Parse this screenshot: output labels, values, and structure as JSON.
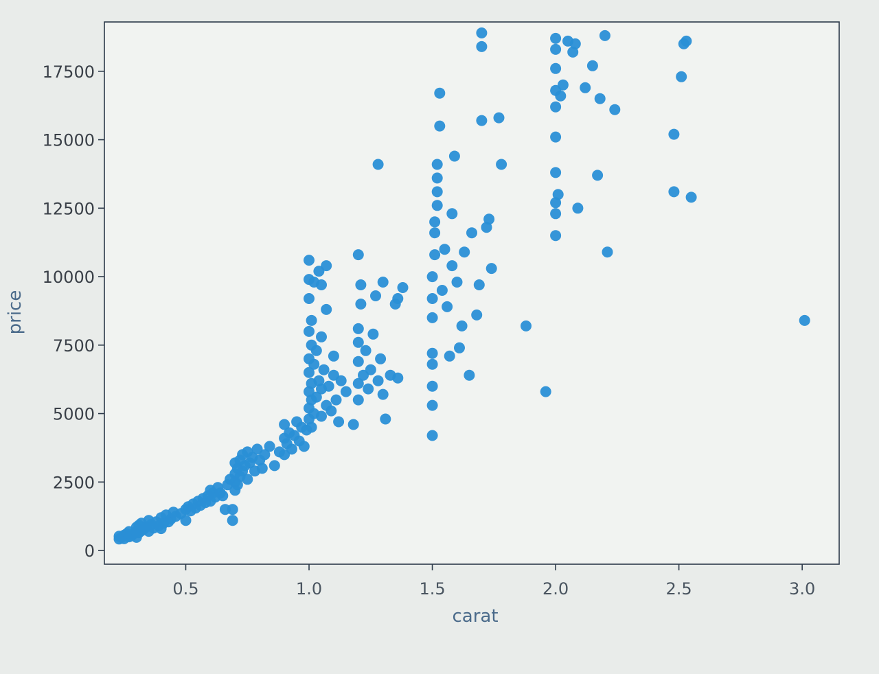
{
  "chart_data": {
    "type": "scatter",
    "title": "",
    "xlabel": "carat",
    "ylabel": "price",
    "xlim": [
      0.17,
      3.15
    ],
    "ylim": [
      -500,
      19300
    ],
    "x_ticks": [
      0.5,
      1.0,
      1.5,
      2.0,
      2.5,
      3.0
    ],
    "x_tick_labels": [
      "0.5",
      "1.0",
      "1.5",
      "2.0",
      "2.5",
      "3.0"
    ],
    "y_ticks": [
      0,
      2500,
      5000,
      7500,
      10000,
      12500,
      15000,
      17500
    ],
    "y_tick_labels": [
      "0",
      "2500",
      "5000",
      "7500",
      "10000",
      "12500",
      "15000",
      "17500"
    ],
    "grid": false,
    "legend": "none",
    "point_color": "#1f77b4",
    "point_color_render": "#2a8fd6",
    "points": [
      [
        0.23,
        420
      ],
      [
        0.23,
        520
      ],
      [
        0.24,
        480
      ],
      [
        0.25,
        560
      ],
      [
        0.25,
        430
      ],
      [
        0.26,
        610
      ],
      [
        0.27,
        500
      ],
      [
        0.27,
        690
      ],
      [
        0.28,
        540
      ],
      [
        0.29,
        620
      ],
      [
        0.3,
        700
      ],
      [
        0.3,
        480
      ],
      [
        0.3,
        850
      ],
      [
        0.31,
        650
      ],
      [
        0.31,
        920
      ],
      [
        0.32,
        720
      ],
      [
        0.32,
        1000
      ],
      [
        0.33,
        780
      ],
      [
        0.34,
        860
      ],
      [
        0.35,
        700
      ],
      [
        0.35,
        1100
      ],
      [
        0.36,
        950
      ],
      [
        0.37,
        820
      ],
      [
        0.38,
        1050
      ],
      [
        0.39,
        900
      ],
      [
        0.4,
        1200
      ],
      [
        0.4,
        800
      ],
      [
        0.41,
        1000
      ],
      [
        0.42,
        1300
      ],
      [
        0.43,
        1050
      ],
      [
        0.44,
        1150
      ],
      [
        0.45,
        1400
      ],
      [
        0.46,
        1250
      ],
      [
        0.48,
        1350
      ],
      [
        0.5,
        1500
      ],
      [
        0.5,
        1100
      ],
      [
        0.51,
        1600
      ],
      [
        0.52,
        1450
      ],
      [
        0.53,
        1700
      ],
      [
        0.54,
        1550
      ],
      [
        0.55,
        1800
      ],
      [
        0.56,
        1650
      ],
      [
        0.57,
        1900
      ],
      [
        0.58,
        1750
      ],
      [
        0.59,
        2000
      ],
      [
        0.6,
        1800
      ],
      [
        0.6,
        2200
      ],
      [
        0.61,
        2100
      ],
      [
        0.62,
        1950
      ],
      [
        0.63,
        2300
      ],
      [
        0.64,
        2100
      ],
      [
        0.65,
        2000
      ],
      [
        0.66,
        1500
      ],
      [
        0.67,
        2400
      ],
      [
        0.68,
        2600
      ],
      [
        0.69,
        1500
      ],
      [
        0.69,
        1100
      ],
      [
        0.7,
        2200
      ],
      [
        0.7,
        2800
      ],
      [
        0.7,
        3200
      ],
      [
        0.7,
        2500
      ],
      [
        0.71,
        3000
      ],
      [
        0.71,
        2400
      ],
      [
        0.72,
        3300
      ],
      [
        0.72,
        2700
      ],
      [
        0.73,
        3500
      ],
      [
        0.73,
        2900
      ],
      [
        0.74,
        3100
      ],
      [
        0.75,
        3600
      ],
      [
        0.75,
        2600
      ],
      [
        0.76,
        3200
      ],
      [
        0.77,
        3400
      ],
      [
        0.78,
        2900
      ],
      [
        0.79,
        3700
      ],
      [
        0.8,
        3300
      ],
      [
        0.81,
        3000
      ],
      [
        0.82,
        3500
      ],
      [
        0.84,
        3800
      ],
      [
        0.86,
        3100
      ],
      [
        0.88,
        3600
      ],
      [
        0.9,
        4100
      ],
      [
        0.9,
        3500
      ],
      [
        0.9,
        4600
      ],
      [
        0.91,
        3900
      ],
      [
        0.92,
        4300
      ],
      [
        0.93,
        3700
      ],
      [
        0.94,
        4200
      ],
      [
        0.95,
        4700
      ],
      [
        0.96,
        4000
      ],
      [
        0.97,
        4500
      ],
      [
        0.98,
        3800
      ],
      [
        0.99,
        4400
      ],
      [
        1.0,
        4800
      ],
      [
        1.0,
        5200
      ],
      [
        1.0,
        5800
      ],
      [
        1.0,
        6500
      ],
      [
        1.0,
        7000
      ],
      [
        1.0,
        8000
      ],
      [
        1.0,
        9200
      ],
      [
        1.0,
        9900
      ],
      [
        1.01,
        4500
      ],
      [
        1.01,
        5500
      ],
      [
        1.01,
        6100
      ],
      [
        1.01,
        7500
      ],
      [
        1.01,
        8400
      ],
      [
        1.02,
        5000
      ],
      [
        1.02,
        6800
      ],
      [
        1.03,
        5600
      ],
      [
        1.03,
        7300
      ],
      [
        1.04,
        6200
      ],
      [
        1.05,
        4900
      ],
      [
        1.05,
        5900
      ],
      [
        1.05,
        7800
      ],
      [
        1.06,
        6600
      ],
      [
        1.07,
        5300
      ],
      [
        1.07,
        8800
      ],
      [
        1.08,
        6000
      ],
      [
        1.09,
        5100
      ],
      [
        1.1,
        6400
      ],
      [
        1.1,
        7100
      ],
      [
        1.11,
        5500
      ],
      [
        1.12,
        4700
      ],
      [
        1.13,
        6200
      ],
      [
        1.15,
        5800
      ],
      [
        1.18,
        4600
      ],
      [
        1.2,
        5500
      ],
      [
        1.2,
        6100
      ],
      [
        1.2,
        6900
      ],
      [
        1.2,
        7600
      ],
      [
        1.2,
        8100
      ],
      [
        1.21,
        9000
      ],
      [
        1.21,
        9700
      ],
      [
        1.22,
        6400
      ],
      [
        1.23,
        7300
      ],
      [
        1.24,
        5900
      ],
      [
        1.25,
        6600
      ],
      [
        1.26,
        7900
      ],
      [
        1.27,
        9300
      ],
      [
        1.28,
        6200
      ],
      [
        1.29,
        7000
      ],
      [
        1.3,
        5700
      ],
      [
        1.31,
        4800
      ],
      [
        1.33,
        6400
      ],
      [
        1.35,
        9000
      ],
      [
        1.36,
        6300
      ],
      [
        1.38,
        9600
      ],
      [
        1.0,
        10600
      ],
      [
        1.02,
        9800
      ],
      [
        1.04,
        10200
      ],
      [
        1.07,
        10400
      ],
      [
        1.05,
        9700
      ],
      [
        1.2,
        10800
      ],
      [
        1.3,
        9800
      ],
      [
        1.36,
        9200
      ],
      [
        1.28,
        14100
      ],
      [
        1.5,
        4200
      ],
      [
        1.5,
        5300
      ],
      [
        1.5,
        6000
      ],
      [
        1.5,
        6800
      ],
      [
        1.5,
        7200
      ],
      [
        1.5,
        8500
      ],
      [
        1.5,
        9200
      ],
      [
        1.5,
        10000
      ],
      [
        1.51,
        10800
      ],
      [
        1.51,
        11600
      ],
      [
        1.51,
        12000
      ],
      [
        1.52,
        12600
      ],
      [
        1.52,
        13100
      ],
      [
        1.52,
        13600
      ],
      [
        1.52,
        14100
      ],
      [
        1.53,
        15500
      ],
      [
        1.53,
        16700
      ],
      [
        1.54,
        9500
      ],
      [
        1.55,
        11000
      ],
      [
        1.56,
        8900
      ],
      [
        1.57,
        7100
      ],
      [
        1.58,
        10400
      ],
      [
        1.58,
        12300
      ],
      [
        1.59,
        14400
      ],
      [
        1.6,
        9800
      ],
      [
        1.61,
        7400
      ],
      [
        1.62,
        8200
      ],
      [
        1.63,
        10900
      ],
      [
        1.65,
        6400
      ],
      [
        1.66,
        11600
      ],
      [
        1.68,
        8600
      ],
      [
        1.69,
        9700
      ],
      [
        1.7,
        15700
      ],
      [
        1.7,
        18400
      ],
      [
        1.7,
        18900
      ],
      [
        1.72,
        11800
      ],
      [
        1.73,
        12100
      ],
      [
        1.74,
        10300
      ],
      [
        1.77,
        15800
      ],
      [
        1.78,
        14100
      ],
      [
        1.88,
        8200
      ],
      [
        1.96,
        5800
      ],
      [
        2.0,
        11500
      ],
      [
        2.0,
        12300
      ],
      [
        2.0,
        12700
      ],
      [
        2.0,
        13800
      ],
      [
        2.0,
        15100
      ],
      [
        2.0,
        16200
      ],
      [
        2.0,
        16800
      ],
      [
        2.0,
        17600
      ],
      [
        2.0,
        18300
      ],
      [
        2.0,
        18700
      ],
      [
        2.01,
        13000
      ],
      [
        2.02,
        16600
      ],
      [
        2.03,
        17000
      ],
      [
        2.05,
        18600
      ],
      [
        2.07,
        18200
      ],
      [
        2.08,
        18500
      ],
      [
        2.09,
        12500
      ],
      [
        2.12,
        16900
      ],
      [
        2.15,
        17700
      ],
      [
        2.17,
        13700
      ],
      [
        2.18,
        16500
      ],
      [
        2.2,
        18800
      ],
      [
        2.21,
        10900
      ],
      [
        2.24,
        16100
      ],
      [
        2.48,
        15200
      ],
      [
        2.48,
        13100
      ],
      [
        2.51,
        17300
      ],
      [
        2.52,
        18500
      ],
      [
        2.53,
        18600
      ],
      [
        2.55,
        12900
      ],
      [
        3.01,
        8400
      ]
    ]
  }
}
